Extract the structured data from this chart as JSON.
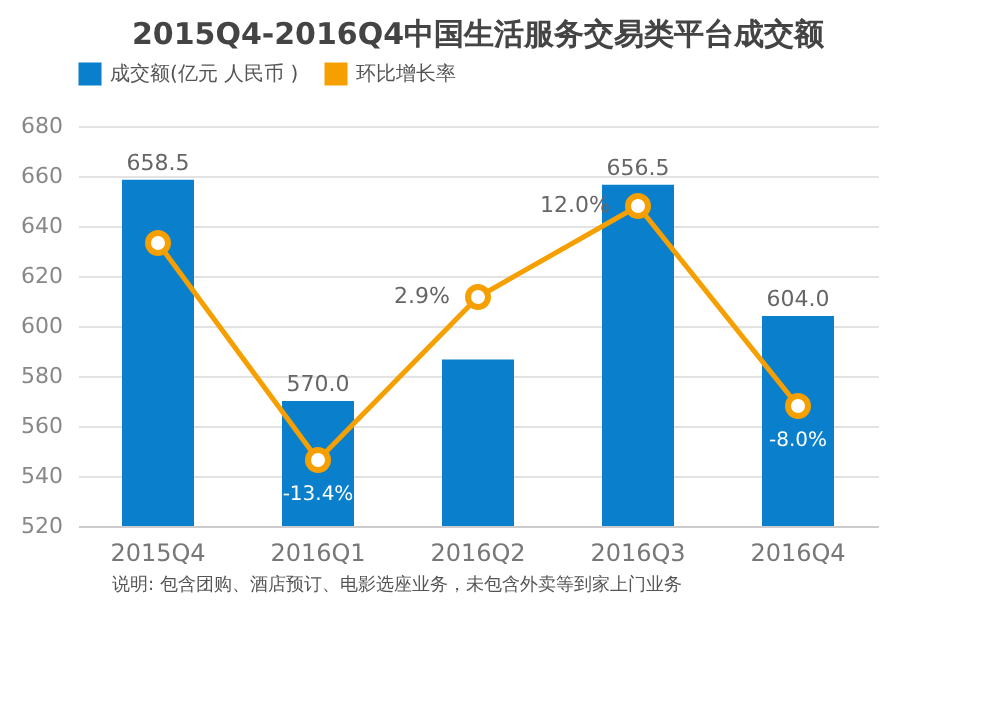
{
  "chart_data": {
    "type": "bar",
    "title": "2015Q4-2016Q4中国生活服务交易类平台成交额",
    "categories": [
      "2015Q4",
      "2016Q1",
      "2016Q2",
      "2016Q3",
      "2016Q4"
    ],
    "series": [
      {
        "name": "成交额(亿元 人民币 )",
        "color": "#0a7fcc",
        "values": [
          658.5,
          570.0,
          586.6,
          656.5,
          604.0
        ],
        "value_labels": [
          "658.5",
          "570.0",
          null,
          "656.5",
          "604.0"
        ]
      },
      {
        "name": "环比增长率",
        "type": "line",
        "axis": "y2",
        "color": "#f5a000",
        "marker": "circle",
        "values": [
          8.3,
          -13.4,
          2.9,
          12.0,
          -8.0
        ],
        "value_labels": [
          null,
          "-13.4%",
          "2.9%",
          "12.0%",
          "-8.0%"
        ]
      }
    ],
    "ylim": [
      520,
      680
    ],
    "yticks": [
      520,
      540,
      560,
      580,
      600,
      620,
      640,
      660,
      680
    ],
    "grid": "y",
    "legend": "top",
    "annotations": [
      "说明: 包含团购、酒店预订、电影选座业务，未包含外卖等到家上门业务"
    ]
  }
}
